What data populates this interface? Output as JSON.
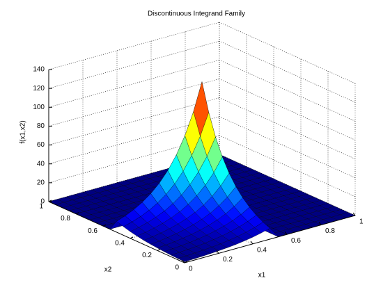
{
  "chart_data": {
    "type": "surface",
    "title": "Discontinuous Integrand Family",
    "xlabel": "x1",
    "ylabel": "x2",
    "zlabel": "f(x1,x2)",
    "x": [
      0,
      0.05,
      0.1,
      0.15,
      0.2,
      0.25,
      0.3,
      0.35,
      0.4,
      0.45,
      0.5,
      0.55,
      0.6,
      0.65,
      0.7,
      0.75,
      0.8,
      0.85,
      0.9,
      0.95,
      1
    ],
    "y": [
      0,
      0.05,
      0.1,
      0.15,
      0.2,
      0.25,
      0.3,
      0.35,
      0.4,
      0.45,
      0.5,
      0.55,
      0.6,
      0.65,
      0.7,
      0.75,
      0.8,
      0.85,
      0.9,
      0.95,
      1
    ],
    "z": [
      [
        1,
        1.3,
        1.6,
        2.1,
        2.7,
        3.4,
        4.3,
        5.6,
        7.1,
        9.1,
        11.6,
        0,
        0,
        0,
        0,
        0,
        0,
        0,
        0,
        0,
        0
      ],
      [
        1.3,
        1.6,
        2.1,
        2.7,
        3.4,
        4.3,
        5.6,
        7.1,
        9.1,
        11.6,
        14.8,
        0,
        0,
        0,
        0,
        0,
        0,
        0,
        0,
        0,
        0
      ],
      [
        1.6,
        2.1,
        2.7,
        3.4,
        4.3,
        5.6,
        7.1,
        9.1,
        11.6,
        14.8,
        18.9,
        0,
        0,
        0,
        0,
        0,
        0,
        0,
        0,
        0,
        0
      ],
      [
        2.1,
        2.7,
        3.4,
        4.3,
        5.6,
        7.1,
        9.1,
        11.6,
        14.8,
        18.9,
        24.2,
        0,
        0,
        0,
        0,
        0,
        0,
        0,
        0,
        0,
        0
      ],
      [
        2.7,
        3.4,
        4.3,
        5.6,
        7.1,
        9.1,
        11.6,
        14.8,
        18.9,
        24.2,
        30.9,
        0,
        0,
        0,
        0,
        0,
        0,
        0,
        0,
        0,
        0
      ],
      [
        3.4,
        4.3,
        5.6,
        7.1,
        9.1,
        11.6,
        14.8,
        18.9,
        24.2,
        30.9,
        39.4,
        0,
        0,
        0,
        0,
        0,
        0,
        0,
        0,
        0,
        0
      ],
      [
        4.3,
        5.6,
        7.1,
        9.1,
        11.6,
        14.8,
        18.9,
        24.2,
        30.9,
        39.4,
        50.4,
        0,
        0,
        0,
        0,
        0,
        0,
        0,
        0,
        0,
        0
      ],
      [
        5.6,
        7.1,
        9.1,
        11.6,
        14.8,
        18.9,
        24.2,
        30.9,
        39.4,
        50.4,
        64.4,
        0,
        0,
        0,
        0,
        0,
        0,
        0,
        0,
        0,
        0
      ],
      [
        7.1,
        9.1,
        11.6,
        14.8,
        18.9,
        24.2,
        30.9,
        39.4,
        50.4,
        64.4,
        82.3,
        0,
        0,
        0,
        0,
        0,
        0,
        0,
        0,
        0,
        0
      ],
      [
        9.1,
        11.6,
        14.8,
        18.9,
        24.2,
        30.9,
        39.4,
        50.4,
        64.4,
        82.3,
        105.1,
        0,
        0,
        0,
        0,
        0,
        0,
        0,
        0,
        0,
        0
      ],
      [
        11.6,
        14.8,
        18.9,
        24.2,
        30.9,
        39.4,
        50.4,
        64.4,
        82.3,
        105.1,
        134.3,
        0,
        0,
        0,
        0,
        0,
        0,
        0,
        0,
        0,
        0
      ],
      [
        0,
        0,
        0,
        0,
        0,
        0,
        0,
        0,
        0,
        0,
        0,
        0,
        0,
        0,
        0,
        0,
        0,
        0,
        0,
        0,
        0
      ],
      [
        0,
        0,
        0,
        0,
        0,
        0,
        0,
        0,
        0,
        0,
        0,
        0,
        0,
        0,
        0,
        0,
        0,
        0,
        0,
        0,
        0
      ],
      [
        0,
        0,
        0,
        0,
        0,
        0,
        0,
        0,
        0,
        0,
        0,
        0,
        0,
        0,
        0,
        0,
        0,
        0,
        0,
        0,
        0
      ],
      [
        0,
        0,
        0,
        0,
        0,
        0,
        0,
        0,
        0,
        0,
        0,
        0,
        0,
        0,
        0,
        0,
        0,
        0,
        0,
        0,
        0
      ],
      [
        0,
        0,
        0,
        0,
        0,
        0,
        0,
        0,
        0,
        0,
        0,
        0,
        0,
        0,
        0,
        0,
        0,
        0,
        0,
        0,
        0
      ],
      [
        0,
        0,
        0,
        0,
        0,
        0,
        0,
        0,
        0,
        0,
        0,
        0,
        0,
        0,
        0,
        0,
        0,
        0,
        0,
        0,
        0
      ],
      [
        0,
        0,
        0,
        0,
        0,
        0,
        0,
        0,
        0,
        0,
        0,
        0,
        0,
        0,
        0,
        0,
        0,
        0,
        0,
        0,
        0
      ],
      [
        0,
        0,
        0,
        0,
        0,
        0,
        0,
        0,
        0,
        0,
        0,
        0,
        0,
        0,
        0,
        0,
        0,
        0,
        0,
        0,
        0
      ],
      [
        0,
        0,
        0,
        0,
        0,
        0,
        0,
        0,
        0,
        0,
        0,
        0,
        0,
        0,
        0,
        0,
        0,
        0,
        0,
        0,
        0
      ],
      [
        0,
        0,
        0,
        0,
        0,
        0,
        0,
        0,
        0,
        0,
        0,
        0,
        0,
        0,
        0,
        0,
        0,
        0,
        0,
        0,
        0
      ]
    ],
    "xlim": [
      0,
      1
    ],
    "ylim": [
      0,
      1
    ],
    "zlim": [
      0,
      140
    ],
    "xticks": [
      0,
      0.2,
      0.4,
      0.6,
      0.8,
      1
    ],
    "yticks": [
      0,
      0.2,
      0.4,
      0.6,
      0.8,
      1
    ],
    "zticks": [
      0,
      20,
      40,
      60,
      80,
      100,
      120,
      140
    ],
    "grid": true,
    "colormap": "jet"
  }
}
